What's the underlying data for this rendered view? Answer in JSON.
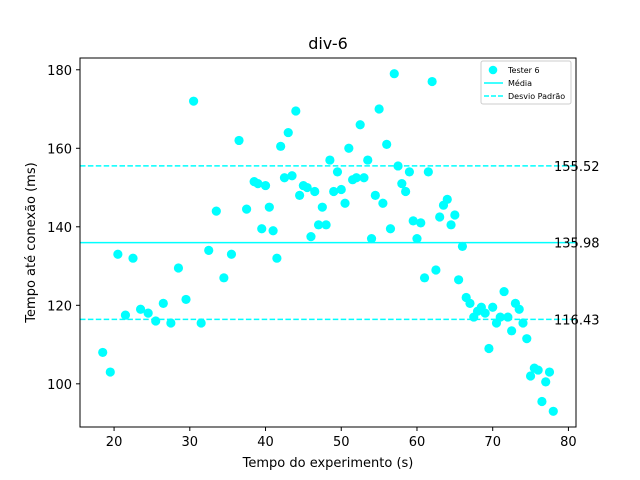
{
  "chart_data": {
    "type": "scatter",
    "title": "div-6",
    "xlabel": "Tempo do experimento (s)",
    "ylabel": "Tempo até conexão (ms)",
    "xlim": [
      15.5,
      81
    ],
    "ylim": [
      89,
      183
    ],
    "xticks": [
      20,
      30,
      40,
      50,
      60,
      70,
      80
    ],
    "yticks": [
      100,
      120,
      140,
      160,
      180
    ],
    "grid": false,
    "legend_position": "top-right",
    "color": "#00ffff",
    "series": [
      {
        "name": "Tester 6",
        "points": [
          [
            18.5,
            108
          ],
          [
            19.5,
            103
          ],
          [
            20.5,
            133
          ],
          [
            21.5,
            117.5
          ],
          [
            22.5,
            132
          ],
          [
            23.5,
            119
          ],
          [
            24.5,
            118
          ],
          [
            25.5,
            116
          ],
          [
            26.5,
            120.5
          ],
          [
            27.5,
            115.5
          ],
          [
            28.5,
            129.5
          ],
          [
            29.5,
            121.5
          ],
          [
            30.5,
            172
          ],
          [
            31.5,
            115.5
          ],
          [
            32.5,
            134
          ],
          [
            33.5,
            144
          ],
          [
            34.5,
            127
          ],
          [
            35.5,
            133
          ],
          [
            36.5,
            162
          ],
          [
            37.5,
            144.5
          ],
          [
            38.5,
            151.5
          ],
          [
            39,
            151
          ],
          [
            39.5,
            139.5
          ],
          [
            40,
            150.5
          ],
          [
            40.5,
            145
          ],
          [
            41,
            139
          ],
          [
            41.5,
            132
          ],
          [
            42,
            160.5
          ],
          [
            42.5,
            152.5
          ],
          [
            43,
            164
          ],
          [
            43.5,
            153
          ],
          [
            44,
            169.5
          ],
          [
            44.5,
            148
          ],
          [
            45,
            150.5
          ],
          [
            45.5,
            150
          ],
          [
            46,
            137.5
          ],
          [
            46.5,
            149
          ],
          [
            47,
            140.5
          ],
          [
            47.5,
            145
          ],
          [
            48,
            140.5
          ],
          [
            48.5,
            157
          ],
          [
            49,
            149
          ],
          [
            49.5,
            154
          ],
          [
            50,
            149.5
          ],
          [
            50.5,
            146
          ],
          [
            51,
            160
          ],
          [
            51.5,
            152
          ],
          [
            52,
            152.5
          ],
          [
            52.5,
            166
          ],
          [
            53,
            152.5
          ],
          [
            53.5,
            157
          ],
          [
            54,
            137
          ],
          [
            54.5,
            148
          ],
          [
            55,
            170
          ],
          [
            55.5,
            146
          ],
          [
            56,
            161
          ],
          [
            56.5,
            139.5
          ],
          [
            57,
            179
          ],
          [
            57.5,
            155.5
          ],
          [
            58,
            151
          ],
          [
            58.5,
            149
          ],
          [
            59,
            154
          ],
          [
            59.5,
            141.5
          ],
          [
            60,
            137
          ],
          [
            60.5,
            141
          ],
          [
            61,
            127
          ],
          [
            61.5,
            154
          ],
          [
            62,
            177
          ],
          [
            62.5,
            129
          ],
          [
            63,
            142.5
          ],
          [
            63.5,
            145.5
          ],
          [
            64,
            147
          ],
          [
            64.5,
            140.5
          ],
          [
            65,
            143
          ],
          [
            65.5,
            126.5
          ],
          [
            66,
            135
          ],
          [
            66.5,
            122
          ],
          [
            67,
            120.5
          ],
          [
            67.5,
            117
          ],
          [
            68,
            118.5
          ],
          [
            68.5,
            119.5
          ],
          [
            69,
            118
          ],
          [
            69.5,
            109
          ],
          [
            70,
            119.5
          ],
          [
            70.5,
            115.5
          ],
          [
            71,
            117
          ],
          [
            71.5,
            123.5
          ],
          [
            72,
            117
          ],
          [
            72.5,
            113.5
          ],
          [
            73,
            120.5
          ],
          [
            73.5,
            119
          ],
          [
            74,
            115.5
          ],
          [
            74.5,
            111.5
          ],
          [
            75,
            102
          ],
          [
            75.5,
            104
          ],
          [
            76,
            103.5
          ],
          [
            76.5,
            95.5
          ],
          [
            77,
            100.5
          ],
          [
            77.5,
            103
          ],
          [
            78,
            93
          ]
        ]
      }
    ],
    "reference_lines": [
      {
        "name": "Média",
        "value": 135.98,
        "label": "135.98",
        "style": "solid"
      },
      {
        "name": "Desvio Padrão",
        "value": 155.52,
        "label": "155.52",
        "style": "dashed"
      },
      {
        "name": "Desvio Padrão",
        "value": 116.43,
        "label": "116.43",
        "style": "dashed"
      }
    ],
    "legend": [
      {
        "label": "Tester 6",
        "kind": "marker"
      },
      {
        "label": "Média",
        "kind": "solid-line"
      },
      {
        "label": "Desvio Padrão",
        "kind": "dashed-line"
      }
    ]
  }
}
